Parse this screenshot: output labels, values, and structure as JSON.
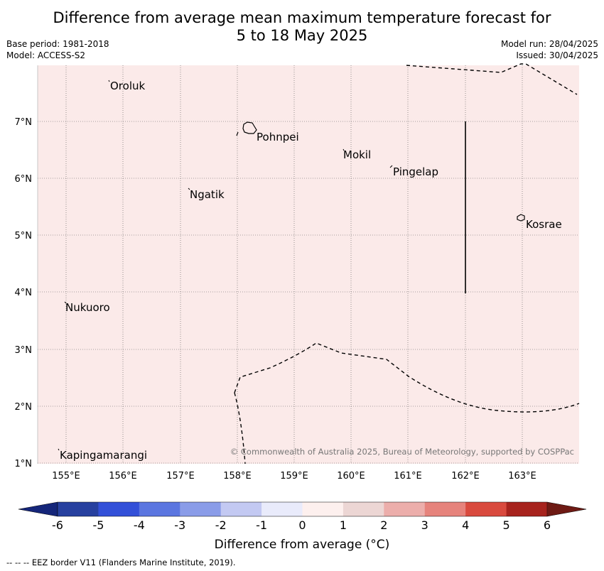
{
  "title": {
    "line1": "Difference from average mean maximum temperature forecast for",
    "line2": "5 to 18 May 2025"
  },
  "meta": {
    "base_period": "Base period: 1981-2018",
    "model": "Model: ACCESS-S2",
    "model_run": "Model run: 28/04/2025",
    "issued": "Issued: 30/04/2025"
  },
  "map": {
    "background_color": "#fbeae9",
    "lon_ticks": [
      "155°E",
      "156°E",
      "157°E",
      "158°E",
      "159°E",
      "160°E",
      "161°E",
      "162°E",
      "163°E"
    ],
    "lat_ticks": [
      "7°N",
      "6°N",
      "5°N",
      "4°N",
      "3°N",
      "2°N",
      "1°N"
    ],
    "places": [
      {
        "name": "Oroluk"
      },
      {
        "name": "Pohnpei"
      },
      {
        "name": "Mokil"
      },
      {
        "name": "Pingelap"
      },
      {
        "name": "Ngatik"
      },
      {
        "name": "Kosrae"
      },
      {
        "name": "Nukuoro"
      },
      {
        "name": "Kapingamarangi"
      }
    ],
    "copyright": "© Commonwealth of Australia 2025, Bureau of Meteorology, supported by COSPPac"
  },
  "colorbar": {
    "ticks": [
      "-6",
      "-5",
      "-4",
      "-3",
      "-2",
      "-1",
      "0",
      "1",
      "2",
      "3",
      "4",
      "5",
      "6"
    ],
    "colors": [
      "#27409f",
      "#3350d8",
      "#5b76e0",
      "#8a9ce8",
      "#c3c9f2",
      "#e9ebfb",
      "#fdf0ee",
      "#ecd6d4",
      "#ecaeab",
      "#e6837c",
      "#d94a3e",
      "#a7231d"
    ],
    "low_extend_color": "#15267a",
    "high_extend_color": "#6e1a14",
    "label": "Difference from average (°C)"
  },
  "footer": "--  --  -- EEZ border V11 (Flanders Marine Institute, 2019)."
}
